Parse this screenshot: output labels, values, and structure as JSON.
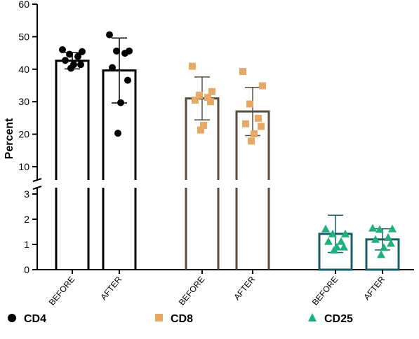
{
  "chart_data": {
    "type": "bar",
    "ylabel": "Percent",
    "categories": [
      "BEFORE",
      "AFTER",
      "BEFORE",
      "AFTER",
      "BEFORE",
      "AFTER"
    ],
    "axis_break": {
      "lower_range": [
        0,
        3
      ],
      "upper_range": [
        10,
        60
      ],
      "position": "y-axis between 3 and 10"
    },
    "lower_ticks": [
      0,
      1,
      2,
      3
    ],
    "upper_ticks": [
      10,
      20,
      30,
      40,
      50,
      60
    ],
    "error_bars": "mean ± SD",
    "series": [
      {
        "name": "CD4",
        "marker": "circle",
        "marker_color": "#000000",
        "bar_edge_color": "#000000",
        "groups": [
          {
            "category": "BEFORE",
            "mean": 42.6,
            "sd_low": 40.1,
            "sd_high": 45.1,
            "points": [
              46.0,
              45.4,
              44.6,
              43.9,
              42.7,
              41.4,
              41.4,
              40.3
            ]
          },
          {
            "category": "AFTER",
            "mean": 39.6,
            "sd_low": 29.6,
            "sd_high": 49.6,
            "points": [
              50.6,
              45.6,
              45.6,
              44.9,
              40.5,
              36.6,
              29.7,
              20.3
            ]
          }
        ]
      },
      {
        "name": "CD8",
        "marker": "square",
        "marker_color": "#e8a867",
        "bar_edge_color": "#5b4c3e",
        "groups": [
          {
            "category": "BEFORE",
            "mean": 31.0,
            "sd_low": 24.4,
            "sd_high": 37.6,
            "points": [
              40.9,
              33.1,
              32.0,
              31.3,
              30.5,
              30.0,
              22.7,
              21.3
            ]
          },
          {
            "category": "AFTER",
            "mean": 27.0,
            "sd_low": 19.6,
            "sd_high": 34.4,
            "points": [
              39.3,
              34.9,
              29.3,
              24.9,
              23.2,
              22.4,
              20.1,
              17.9
            ]
          }
        ]
      },
      {
        "name": "CD25",
        "marker": "triangle",
        "marker_color": "#21b07c",
        "bar_edge_color": "#1b5d66",
        "groups": [
          {
            "category": "BEFORE",
            "mean": 1.42,
            "sd_low": 0.68,
            "sd_high": 2.16,
            "points": [
              1.62,
              1.42,
              1.42,
              1.12,
              1.12,
              0.9,
              0.9,
              0.78
            ]
          },
          {
            "category": "AFTER",
            "mean": 1.2,
            "sd_low": 0.78,
            "sd_high": 1.62,
            "points": [
              1.65,
              1.62,
              1.6,
              1.28,
              1.2,
              1.05,
              0.88,
              0.6
            ]
          }
        ]
      }
    ],
    "legend": {
      "position": "bottom",
      "items": [
        "CD4",
        "CD8",
        "CD25"
      ]
    }
  }
}
